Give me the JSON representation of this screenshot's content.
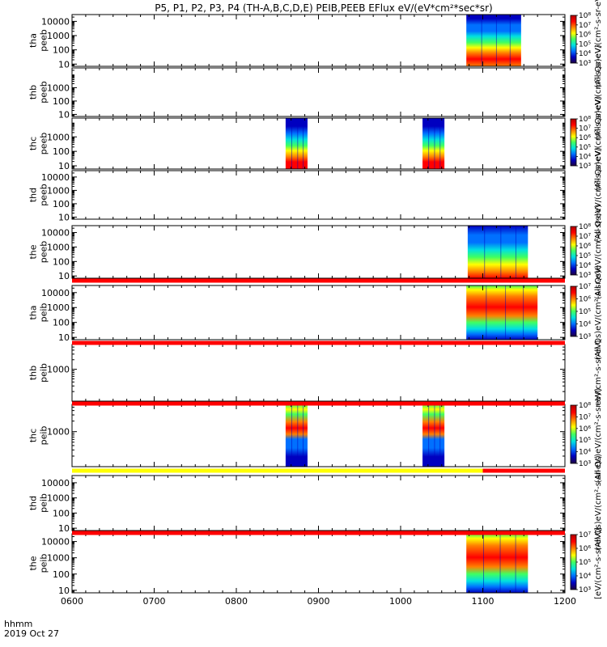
{
  "title": "P5, P1, P2, P3, P4 (TH-A,B,C,D,E) PEIB,PEEB EFlux eV/(eV*cm²*sec*sr)",
  "footer": {
    "line1": "hhmm",
    "line2": "2019 Oct 27"
  },
  "colors": {
    "background": "#ffffff",
    "axis": "#000000",
    "flag_red": "#ff0000",
    "flag_yellow": "#ffff00",
    "flag_black": "#000000"
  },
  "chart_data": {
    "type": "heatmap",
    "x_axis": {
      "label": "hhmm",
      "date": "2019 Oct 27",
      "range": [
        "0600",
        "1200"
      ],
      "ticks": [
        "0600",
        "0700",
        "0800",
        "0900",
        "1000",
        "1100",
        "1200"
      ]
    },
    "colorscale": [
      "#200040",
      "#0000c0",
      "#0070ff",
      "#00e0e0",
      "#40ff60",
      "#ffff00",
      "#ff8000",
      "#ff0000",
      "#b00000"
    ],
    "panels": [
      {
        "id": "tha_peeb",
        "ylabel": [
          "tha",
          "peeb"
        ],
        "yscale": "log",
        "yrange": [
          7,
          30000
        ],
        "yticks": [
          10,
          100,
          1000,
          10000
        ],
        "ytick_labels": [
          "10",
          "100",
          "1000",
          "10000"
        ],
        "colorbar": {
          "present": true,
          "label": "(All Qs)eV/(cm²-s-sr-eV)",
          "min_exp": 3,
          "max_exp": 8,
          "labels": [
            "10³",
            "10⁴",
            "10⁵",
            "10⁶",
            "10⁷",
            "10⁸"
          ]
        },
        "data_blocks": [
          {
            "start": "1048",
            "end": "1128",
            "profile": "electron"
          }
        ]
      },
      {
        "id": "thb_peeb",
        "ylabel": [
          "thb",
          "peeb"
        ],
        "yscale": "log",
        "yrange": [
          7,
          30000
        ],
        "yticks": [
          10,
          100,
          1000
        ],
        "ytick_labels": [
          "10",
          "100",
          "1000"
        ],
        "colorbar": {
          "present": false,
          "label": "(All Qs)eV/(cm²-s-sr-eV)"
        },
        "data_blocks": []
      },
      {
        "id": "thc_peeb",
        "ylabel": [
          "thc",
          "peeb"
        ],
        "yscale": "log",
        "yrange": [
          6,
          20000
        ],
        "yticks": [
          10,
          100,
          1000
        ],
        "ytick_labels": [
          "10",
          "100",
          "1000"
        ],
        "colorbar": {
          "present": true,
          "label": "(All Qs)eV/(cm²-s-sr-eV)",
          "min_exp": 3,
          "max_exp": 8,
          "labels": [
            "10³",
            "10⁴",
            "10⁵",
            "10⁶",
            "10⁷",
            "10⁸"
          ]
        },
        "data_blocks": [
          {
            "start": "0836",
            "end": "0852",
            "profile": "electron_short"
          },
          {
            "start": "1016",
            "end": "1032",
            "profile": "electron_short"
          }
        ]
      },
      {
        "id": "thd_peeb",
        "ylabel": [
          "thd",
          "peeb"
        ],
        "yscale": "log",
        "yrange": [
          7,
          30000
        ],
        "yticks": [
          10,
          100,
          1000,
          10000
        ],
        "ytick_labels": [
          "10",
          "100",
          "1000",
          "10000"
        ],
        "colorbar": {
          "present": false,
          "label": "(All Qs)eV/(cm²-s-sr-eV)"
        },
        "data_blocks": []
      },
      {
        "id": "the_peeb",
        "ylabel": [
          "the",
          "peeb"
        ],
        "yscale": "log",
        "yrange": [
          7,
          30000
        ],
        "yticks": [
          10,
          100,
          1000,
          10000
        ],
        "ytick_labels": [
          "10",
          "100",
          "1000",
          "10000"
        ],
        "colorbar": {
          "present": true,
          "label": "(All Qs)eV/(cm²-s-sr-eV)",
          "min_exp": 3,
          "max_exp": 8,
          "labels": [
            "10³",
            "10⁴",
            "10⁵",
            "10⁶",
            "10⁷",
            "10⁸"
          ]
        },
        "data_blocks": [
          {
            "start": "1049",
            "end": "1133",
            "profile": "electron_mid"
          }
        ]
      },
      {
        "id": "tha_peib",
        "ylabel": [
          "tha",
          "peib"
        ],
        "yscale": "log",
        "yrange": [
          7,
          30000
        ],
        "yticks": [
          10,
          100,
          1000,
          10000
        ],
        "ytick_labels": [
          "10",
          "100",
          "1000",
          "10000"
        ],
        "colorbar": {
          "present": true,
          "label": "(All Qs)eV/(cm²-s-sr-eV)",
          "min_exp": 3,
          "max_exp": 7,
          "labels": [
            "10³",
            "10⁴",
            "10⁵",
            "10⁶",
            "10⁷"
          ]
        },
        "data_blocks": [
          {
            "start": "1048",
            "end": "1140",
            "profile": "ion"
          }
        ]
      },
      {
        "id": "thb_peib",
        "ylabel": [
          "thb",
          "peib"
        ],
        "yscale": "log",
        "yrange": [
          100,
          6000
        ],
        "yticks": [
          1000
        ],
        "ytick_labels": [
          "1000"
        ],
        "colorbar": {
          "present": false,
          "label": "eV/(cm²-s-sr-eV)"
        },
        "data_blocks": []
      },
      {
        "id": "thc_peib",
        "ylabel": [
          "thc",
          "peib"
        ],
        "yscale": "log",
        "yrange": [
          100,
          6000
        ],
        "yticks": [
          1000
        ],
        "ytick_labels": [
          "1000"
        ],
        "colorbar": {
          "present": true,
          "label": "(All Qs)eV/(cm²-s-sr-eV)",
          "min_exp": 3,
          "max_exp": 8,
          "labels": [
            "10³",
            "10⁴",
            "10⁵",
            "10⁶",
            "10⁷",
            "10⁸"
          ]
        },
        "data_blocks": [
          {
            "start": "0836",
            "end": "0852",
            "profile": "ion_c"
          },
          {
            "start": "1016",
            "end": "1032",
            "profile": "ion_c"
          }
        ]
      },
      {
        "id": "thd_peib",
        "ylabel": [
          "thd",
          "peib"
        ],
        "yscale": "log",
        "yrange": [
          7,
          30000
        ],
        "yticks": [
          10,
          100,
          1000,
          10000
        ],
        "ytick_labels": [
          "10",
          "100",
          "1000",
          "10000"
        ],
        "colorbar": {
          "present": false,
          "label": "(All Qs)eV/(cm²-s-sr-eV)"
        },
        "data_blocks": []
      },
      {
        "id": "the_peib",
        "ylabel": [
          "the",
          "peib"
        ],
        "yscale": "log",
        "yrange": [
          7,
          30000
        ],
        "yticks": [
          10,
          100,
          1000,
          10000
        ],
        "ytick_labels": [
          "10",
          "100",
          "1000",
          "10000"
        ],
        "colorbar": {
          "present": true,
          "label": "[eV/(cm²-s-sr-eV)]",
          "min_exp": 3,
          "max_exp": 7,
          "labels": [
            "10³",
            "10⁴",
            "10⁵",
            "10⁶",
            "10⁷"
          ]
        },
        "data_blocks": [
          {
            "start": "1048",
            "end": "1133",
            "profile": "ion"
          }
        ]
      }
    ],
    "flag_bars": [
      {
        "after_panel": 4,
        "segments": [
          {
            "start": "0600",
            "end": "1200",
            "color": "red"
          }
        ]
      },
      {
        "after_panel": 5,
        "segments": [
          {
            "start": "0600",
            "end": "1200",
            "color": "red"
          }
        ]
      },
      {
        "after_panel": 6,
        "segments": [
          {
            "start": "0600",
            "end": "1200",
            "color": "red"
          }
        ]
      },
      {
        "after_panel": 7,
        "segments": [
          {
            "start": "0600",
            "end": "1100",
            "color": "yellow"
          },
          {
            "start": "1100",
            "end": "1200",
            "color": "red"
          }
        ]
      },
      {
        "after_panel": 8,
        "segments": [
          {
            "start": "0600",
            "end": "1200",
            "color": "red"
          }
        ]
      }
    ]
  }
}
